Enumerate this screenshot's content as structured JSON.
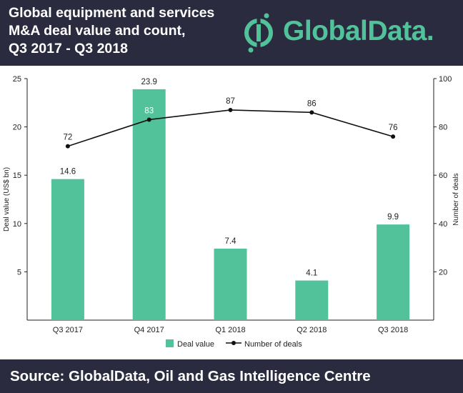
{
  "header": {
    "title_lines": [
      "Global equipment and services",
      "M&A deal value and count,",
      "Q3 2017 -  Q3 2018"
    ],
    "logo_text": "GlobalData.",
    "logo_icon": "globaldata-logo-icon"
  },
  "footer": {
    "source": "Source: GlobalData, Oil and Gas Intelligence Centre"
  },
  "colors": {
    "header_bg": "#2b2b3f",
    "bar": "#52c29a",
    "line": "#111111",
    "logo": "#52c29a"
  },
  "chart_data": {
    "type": "bar",
    "categories": [
      "Q3 2017",
      "Q4 2017",
      "Q1 2018",
      "Q2 2018",
      "Q3 2018"
    ],
    "series": [
      {
        "name": "Deal value",
        "type": "bar",
        "axis": "left",
        "values": [
          14.6,
          23.9,
          7.4,
          4.1,
          9.9
        ],
        "labels": [
          "14.6",
          "23.9",
          "7.4",
          "4.1",
          "9.9"
        ]
      },
      {
        "name": "Number of deals",
        "type": "line",
        "axis": "right",
        "values": [
          72,
          83,
          87,
          86,
          76
        ],
        "labels": [
          "72",
          "83",
          "87",
          "86",
          "76"
        ]
      }
    ],
    "ylabel": "Deal value (US$ bn)",
    "y2label": "Number of deals",
    "ylim": [
      0,
      25
    ],
    "y2lim": [
      0,
      100
    ],
    "yticks": [
      "5",
      "10",
      "15",
      "20",
      "25"
    ],
    "y2ticks": [
      "20",
      "40",
      "60",
      "80",
      "100"
    ],
    "grid": false,
    "legend": "bottom-center"
  }
}
